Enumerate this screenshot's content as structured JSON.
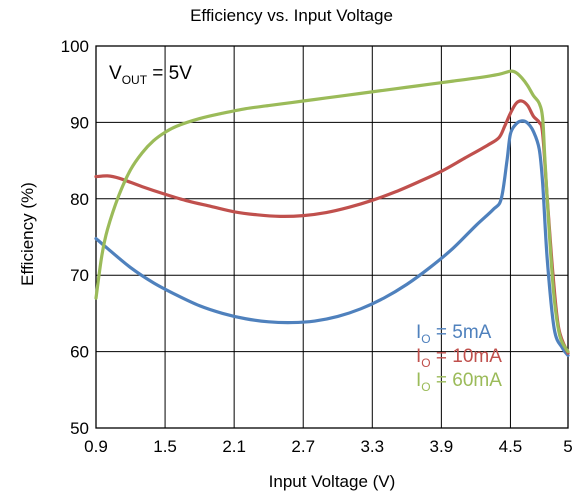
{
  "chart_data": {
    "type": "line",
    "title": "Efficiency vs. Input Voltage",
    "xlabel": "Input Voltage (V)",
    "ylabel": "Efficiency (%)",
    "xlim": [
      0.9,
      5
    ],
    "ylim": [
      50,
      100
    ],
    "xticks": [
      0.9,
      1.5,
      2.1,
      2.7,
      3.3,
      3.9,
      4.5,
      5
    ],
    "xtick_labels": [
      "0.9",
      "1.5",
      "2.1",
      "2.7",
      "3.3",
      "3.9",
      "4.5",
      "5"
    ],
    "yticks": [
      50,
      60,
      70,
      80,
      90,
      100
    ],
    "ytick_labels": [
      "50",
      "60",
      "70",
      "80",
      "90",
      "100"
    ],
    "grid": true,
    "annotation": {
      "main": "V",
      "sub": "OUT",
      "rest": " = 5V"
    },
    "legend_position": "bottom-right",
    "series": [
      {
        "name": "IO = 5mA",
        "label_main": "I",
        "label_sub": "O",
        "label_rest": " = 5mA",
        "color": "#4f81bd",
        "points": [
          [
            0.9,
            74.8
          ],
          [
            1.0,
            73.5
          ],
          [
            1.2,
            71.0
          ],
          [
            1.4,
            69.0
          ],
          [
            1.6,
            67.4
          ],
          [
            1.8,
            66.0
          ],
          [
            2.0,
            65.0
          ],
          [
            2.2,
            64.3
          ],
          [
            2.4,
            63.9
          ],
          [
            2.6,
            63.8
          ],
          [
            2.8,
            64.0
          ],
          [
            3.0,
            64.6
          ],
          [
            3.2,
            65.6
          ],
          [
            3.4,
            67.0
          ],
          [
            3.6,
            68.8
          ],
          [
            3.8,
            71.0
          ],
          [
            4.0,
            73.5
          ],
          [
            4.2,
            76.5
          ],
          [
            4.35,
            78.6
          ],
          [
            4.42,
            80.0
          ],
          [
            4.47,
            85.0
          ],
          [
            4.5,
            88.5
          ],
          [
            4.55,
            89.8
          ],
          [
            4.6,
            90.2
          ],
          [
            4.65,
            89.9
          ],
          [
            4.7,
            88.8
          ],
          [
            4.75,
            86.5
          ],
          [
            4.78,
            82.0
          ],
          [
            4.82,
            72.0
          ],
          [
            4.88,
            63.0
          ],
          [
            4.95,
            60.5
          ],
          [
            5.0,
            59.5
          ]
        ]
      },
      {
        "name": "IO = 10mA",
        "label_main": "I",
        "label_sub": "O",
        "label_rest": " = 10mA",
        "color": "#c0504d",
        "points": [
          [
            0.9,
            82.9
          ],
          [
            1.0,
            83.0
          ],
          [
            1.1,
            82.7
          ],
          [
            1.3,
            81.6
          ],
          [
            1.5,
            80.6
          ],
          [
            1.7,
            79.7
          ],
          [
            1.9,
            79.0
          ],
          [
            2.1,
            78.3
          ],
          [
            2.3,
            77.9
          ],
          [
            2.5,
            77.7
          ],
          [
            2.7,
            77.8
          ],
          [
            2.9,
            78.2
          ],
          [
            3.1,
            78.9
          ],
          [
            3.3,
            79.8
          ],
          [
            3.5,
            80.9
          ],
          [
            3.7,
            82.2
          ],
          [
            3.9,
            83.6
          ],
          [
            4.1,
            85.3
          ],
          [
            4.3,
            87.0
          ],
          [
            4.4,
            88.0
          ],
          [
            4.45,
            89.5
          ],
          [
            4.5,
            91.2
          ],
          [
            4.55,
            92.5
          ],
          [
            4.6,
            92.8
          ],
          [
            4.65,
            92.2
          ],
          [
            4.7,
            90.8
          ],
          [
            4.75,
            90.0
          ],
          [
            4.78,
            88.5
          ],
          [
            4.82,
            80.0
          ],
          [
            4.87,
            70.0
          ],
          [
            4.92,
            63.0
          ],
          [
            5.0,
            59.8
          ]
        ]
      },
      {
        "name": "IO = 60mA",
        "label_main": "I",
        "label_sub": "O",
        "label_rest": " = 60mA",
        "color": "#9bbb59",
        "points": [
          [
            0.9,
            67.0
          ],
          [
            0.95,
            72.5
          ],
          [
            1.0,
            76.0
          ],
          [
            1.1,
            80.5
          ],
          [
            1.2,
            83.8
          ],
          [
            1.3,
            86.0
          ],
          [
            1.4,
            87.6
          ],
          [
            1.5,
            88.7
          ],
          [
            1.6,
            89.5
          ],
          [
            1.8,
            90.5
          ],
          [
            2.0,
            91.2
          ],
          [
            2.2,
            91.8
          ],
          [
            2.4,
            92.2
          ],
          [
            2.6,
            92.6
          ],
          [
            2.8,
            93.0
          ],
          [
            3.0,
            93.4
          ],
          [
            3.2,
            93.8
          ],
          [
            3.4,
            94.2
          ],
          [
            3.6,
            94.6
          ],
          [
            3.8,
            95.0
          ],
          [
            4.0,
            95.4
          ],
          [
            4.2,
            95.8
          ],
          [
            4.4,
            96.3
          ],
          [
            4.5,
            96.7
          ],
          [
            4.55,
            96.5
          ],
          [
            4.6,
            95.8
          ],
          [
            4.65,
            94.8
          ],
          [
            4.7,
            93.5
          ],
          [
            4.75,
            92.5
          ],
          [
            4.78,
            90.5
          ],
          [
            4.8,
            85.0
          ],
          [
            4.84,
            75.0
          ],
          [
            4.88,
            67.0
          ],
          [
            4.93,
            62.0
          ],
          [
            5.0,
            60.0
          ]
        ]
      }
    ]
  }
}
